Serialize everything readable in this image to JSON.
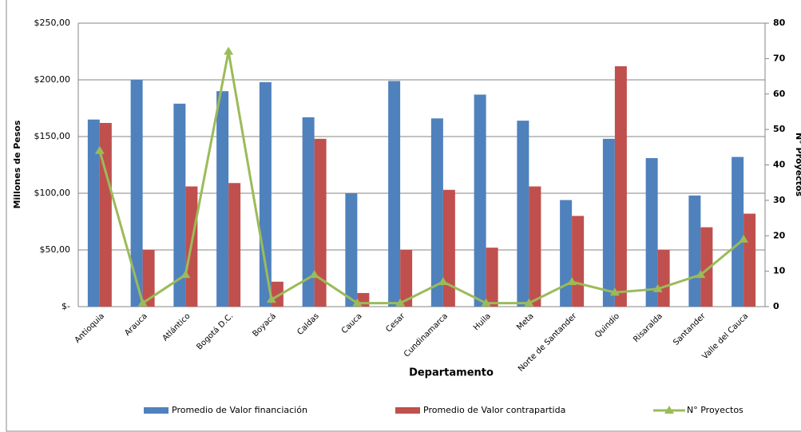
{
  "chart_data": {
    "type": "bar",
    "categories": [
      "Antioquia",
      "Arauca",
      "Atlántico",
      "Bogotá D.C.",
      "Boyacá",
      "Caldas",
      "Cauca",
      "Cesar",
      "Cundinamarca",
      "Huila",
      "Meta",
      "Norte de Santander",
      "Quindío",
      "Risaralda",
      "Santander",
      "Valle del Cauca"
    ],
    "series": [
      {
        "name": "Promedio de Valor financiación",
        "type": "bar",
        "color": "#4f81bd",
        "values": [
          165,
          200,
          179,
          190,
          198,
          167,
          100,
          199,
          166,
          187,
          164,
          94,
          148,
          131,
          98,
          132
        ]
      },
      {
        "name": "Promedio de Valor contrapartida",
        "type": "bar",
        "color": "#c0504d",
        "values": [
          162,
          50,
          106,
          109,
          22,
          148,
          12,
          50,
          103,
          52,
          106,
          80,
          212,
          50,
          70,
          82
        ]
      },
      {
        "name": "N° Proyectos",
        "type": "line",
        "axis": "y2",
        "color": "#9bbb59",
        "values": [
          44,
          1,
          9,
          72,
          2,
          9,
          1,
          1,
          7,
          1,
          1,
          7,
          4,
          5,
          9,
          19
        ]
      }
    ],
    "ylim": [
      0,
      250
    ],
    "yticks": [
      {
        "value": 0,
        "label": "$-"
      },
      {
        "value": 50,
        "label": "$50,00"
      },
      {
        "value": 100,
        "label": "$100,00"
      },
      {
        "value": 150,
        "label": "$150,00"
      },
      {
        "value": 200,
        "label": "$200,00"
      },
      {
        "value": 250,
        "label": "$250,00"
      }
    ],
    "y2lim": [
      0,
      80
    ],
    "y2ticks": [
      0,
      10,
      20,
      30,
      40,
      50,
      60,
      70,
      80
    ],
    "ylabel": "Millones de Pesos",
    "y2label": "N° Proyectos",
    "xlabel": "Departamento",
    "grid": true
  }
}
